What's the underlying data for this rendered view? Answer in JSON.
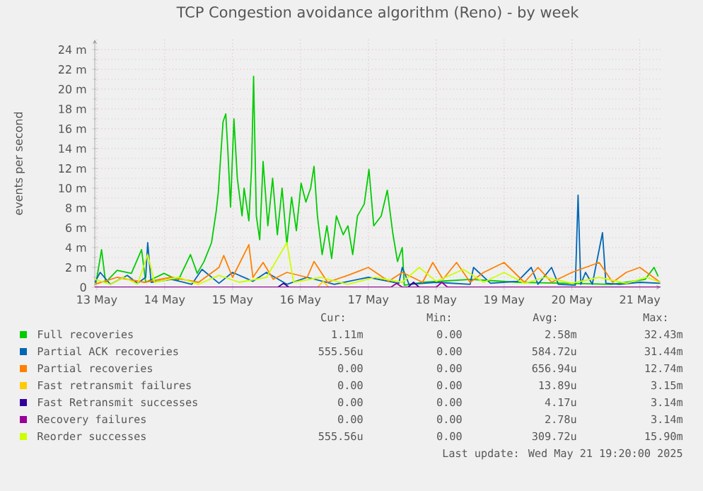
{
  "chart_data": {
    "type": "line",
    "title": "TCP Congestion avoidance algorithm (Reno) - by week",
    "ylabel": "events per second",
    "xlim": [
      "2025-05-13T11:17",
      "2025-05-21T19:20"
    ],
    "xticks": [
      {
        "value": "2025-05-13T12:00",
        "label": "13 May"
      },
      {
        "value": "2025-05-14T12:00",
        "label": "14 May"
      },
      {
        "value": "2025-05-15T12:00",
        "label": "15 May"
      },
      {
        "value": "2025-05-16T12:00",
        "label": "16 May"
      },
      {
        "value": "2025-05-17T12:00",
        "label": "17 May"
      },
      {
        "value": "2025-05-18T12:00",
        "label": "18 May"
      },
      {
        "value": "2025-05-19T12:00",
        "label": "19 May"
      },
      {
        "value": "2025-05-20T12:00",
        "label": "20 May"
      },
      {
        "value": "2025-05-21T12:00",
        "label": "21 May"
      }
    ],
    "ylim": [
      0,
      25
    ],
    "yticks": [
      0,
      {
        "value": 2,
        "label": "2 m"
      },
      {
        "value": 4,
        "label": "4 m"
      },
      {
        "value": 6,
        "label": "6 m"
      },
      {
        "value": 8,
        "label": "8 m"
      },
      {
        "value": 10,
        "label": "10 m"
      },
      {
        "value": 12,
        "label": "12 m"
      },
      {
        "value": 14,
        "label": "14 m"
      },
      {
        "value": 16,
        "label": "16 m"
      },
      {
        "value": 18,
        "label": "18 m"
      },
      {
        "value": 20,
        "label": "20 m"
      },
      {
        "value": 22,
        "label": "22 m"
      },
      {
        "value": 24,
        "label": "24 m"
      }
    ],
    "grid": true,
    "legend": "bottom",
    "marker": "none",
    "line_style": "solid",
    "series": [
      {
        "name": "Full recoveries",
        "color": "#00cc00",
        "x": [
          "2025-05-13T11:17",
          "2025-05-13T11:46",
          "2025-05-13T13:41",
          "2025-05-13T15:07",
          "2025-05-13T19:12",
          "2025-05-14T00:14",
          "2025-05-14T03:50",
          "2025-05-14T05:17",
          "2025-05-14T11:46",
          "2025-05-14T16:48",
          "2025-05-14T21:07",
          "2025-05-14T23:31",
          "2025-05-15T01:55",
          "2025-05-15T04:34",
          "2025-05-15T06:14",
          "2025-05-15T06:58",
          "2025-05-15T08:38",
          "2025-05-15T09:36",
          "2025-05-15T10:19",
          "2025-05-15T11:17",
          "2025-05-15T12:29",
          "2025-05-15T13:41",
          "2025-05-15T15:22",
          "2025-05-15T16:05",
          "2025-05-15T17:46",
          "2025-05-15T18:43",
          "2025-05-15T19:26",
          "2025-05-15T20:24",
          "2025-05-15T21:36",
          "2025-05-15T22:48",
          "2025-05-16T00:29",
          "2025-05-16T02:10",
          "2025-05-16T03:50",
          "2025-05-16T05:31",
          "2025-05-16T07:12",
          "2025-05-16T08:53",
          "2025-05-16T10:34",
          "2025-05-16T12:14",
          "2025-05-16T13:55",
          "2025-05-16T15:36",
          "2025-05-16T16:48",
          "2025-05-16T18:00",
          "2025-05-16T19:41",
          "2025-05-16T21:22",
          "2025-05-16T23:02",
          "2025-05-17T00:43",
          "2025-05-17T03:07",
          "2025-05-17T04:48",
          "2025-05-17T06:29",
          "2025-05-17T08:10",
          "2025-05-17T10:34",
          "2025-05-17T12:14",
          "2025-05-17T13:55",
          "2025-05-17T16:34",
          "2025-05-17T18:43",
          "2025-05-17T20:38",
          "2025-05-17T22:19",
          "2025-05-18T00:00",
          "2025-05-18T00:43",
          "2025-05-18T07:26",
          "2025-05-19T00:14",
          "2025-05-19T16:48",
          "2025-05-20T09:36",
          "2025-05-21T02:10",
          "2025-05-21T13:55",
          "2025-05-21T17:02",
          "2025-05-21T18:29"
        ],
        "values": [
          0.5,
          0.5,
          3.8,
          0.5,
          1.7,
          1.4,
          3.8,
          0.5,
          1.4,
          0.7,
          3.3,
          1.4,
          2.6,
          4.5,
          7.7,
          9.6,
          16.7,
          17.5,
          13.9,
          8.1,
          17.0,
          11.0,
          7.2,
          10.0,
          6.7,
          12.0,
          21.3,
          7.2,
          4.8,
          12.7,
          6.2,
          11.0,
          5.3,
          10.0,
          4.3,
          9.1,
          5.7,
          10.5,
          8.6,
          10.0,
          12.2,
          7.2,
          3.3,
          6.2,
          2.9,
          7.2,
          5.3,
          6.2,
          3.3,
          7.2,
          8.4,
          11.9,
          6.2,
          7.2,
          9.8,
          5.5,
          2.6,
          4.0,
          0.2,
          0.5,
          0.8,
          0.5,
          0.4,
          0.3,
          0.8,
          2.0,
          1.1
        ]
      },
      {
        "name": "Partial ACK recoveries",
        "color": "#0066b3",
        "x": [
          "2025-05-13T11:17",
          "2025-05-13T13:12",
          "2025-05-13T16:48",
          "2025-05-13T22:48",
          "2025-05-14T02:24",
          "2025-05-14T05:17",
          "2025-05-14T06:00",
          "2025-05-14T07:12",
          "2025-05-14T14:24",
          "2025-05-14T21:36",
          "2025-05-15T01:12",
          "2025-05-15T07:12",
          "2025-05-15T12:00",
          "2025-05-15T19:12",
          "2025-05-16T00:00",
          "2025-05-16T07:12",
          "2025-05-16T14:24",
          "2025-05-17T00:00",
          "2025-05-17T12:00",
          "2025-05-17T22:48",
          "2025-05-18T00:00",
          "2025-05-18T02:24",
          "2025-05-18T12:00",
          "2025-05-19T00:00",
          "2025-05-19T01:12",
          "2025-05-19T07:12",
          "2025-05-19T16:48",
          "2025-05-19T21:36",
          "2025-05-20T00:00",
          "2025-05-20T04:48",
          "2025-05-20T07:12",
          "2025-05-20T13:12",
          "2025-05-20T14:10",
          "2025-05-20T15:07",
          "2025-05-20T16:48",
          "2025-05-20T19:12",
          "2025-05-20T22:48",
          "2025-05-21T00:00",
          "2025-05-21T04:48",
          "2025-05-21T12:00",
          "2025-05-21T19:12"
        ],
        "values": [
          0.5,
          1.5,
          0.3,
          1.2,
          0.4,
          1.0,
          4.5,
          0.5,
          0.8,
          0.3,
          1.8,
          0.4,
          1.5,
          0.6,
          1.5,
          0.3,
          1.0,
          0.3,
          1.0,
          0.4,
          2.0,
          0.3,
          0.5,
          0.3,
          2.0,
          0.4,
          0.6,
          2.0,
          0.3,
          2.0,
          0.3,
          0.2,
          9.3,
          0.3,
          1.5,
          0.3,
          5.5,
          0.4,
          0.3,
          0.5,
          0.4
        ]
      },
      {
        "name": "Partial recoveries",
        "color": "#ff8000",
        "x": [
          "2025-05-13T11:17",
          "2025-05-13T19:12",
          "2025-05-14T04:48",
          "2025-05-14T14:24",
          "2025-05-15T00:00",
          "2025-05-15T07:12",
          "2025-05-15T08:53",
          "2025-05-15T12:00",
          "2025-05-15T17:46",
          "2025-05-15T19:12",
          "2025-05-15T22:48",
          "2025-05-16T02:24",
          "2025-05-16T07:12",
          "2025-05-16T14:24",
          "2025-05-16T16:48",
          "2025-05-16T21:36",
          "2025-05-17T04:48",
          "2025-05-17T12:00",
          "2025-05-17T19:12",
          "2025-05-18T00:00",
          "2025-05-18T07:12",
          "2025-05-18T10:48",
          "2025-05-18T14:24",
          "2025-05-18T19:12",
          "2025-05-19T00:00",
          "2025-05-19T04:48",
          "2025-05-19T12:00",
          "2025-05-19T19:12",
          "2025-05-20T00:00",
          "2025-05-20T04:48",
          "2025-05-20T12:00",
          "2025-05-20T21:36",
          "2025-05-21T02:24",
          "2025-05-21T07:12",
          "2025-05-21T12:00",
          "2025-05-21T19:12"
        ],
        "values": [
          0.3,
          1.0,
          0.5,
          1.0,
          0.5,
          2.0,
          3.2,
          1.0,
          4.3,
          1.0,
          2.5,
          0.8,
          1.5,
          1.0,
          2.6,
          0.5,
          1.2,
          2.0,
          0.6,
          1.5,
          0.5,
          2.5,
          0.8,
          2.5,
          0.5,
          1.5,
          2.5,
          0.5,
          2.0,
          0.5,
          1.5,
          2.5,
          0.5,
          1.5,
          2.0,
          0.5
        ]
      },
      {
        "name": "Fast retransmit failures",
        "color": "#ffcc00",
        "x": [
          "2025-05-16T18:00",
          "2025-05-16T20:00",
          "2025-05-16T22:00"
        ],
        "values": [
          0,
          0.6,
          0
        ]
      },
      {
        "name": "Fast Retransmit successes",
        "color": "#330099",
        "x": [
          "2025-05-16T04:00",
          "2025-05-16T06:00",
          "2025-05-16T08:00",
          "2025-05-17T12:00",
          "2025-05-18T02:00",
          "2025-05-18T04:00",
          "2025-05-18T06:00"
        ],
        "values": [
          0,
          0.4,
          0,
          null,
          0,
          0.5,
          0
        ]
      },
      {
        "name": "Recovery failures",
        "color": "#990099",
        "x": [
          "2025-05-13T11:17",
          "2025-05-17T20:00",
          "2025-05-17T22:00",
          "2025-05-18T00:00",
          "2025-05-18T12:00",
          "2025-05-18T14:00",
          "2025-05-18T16:00",
          "2025-05-21T19:20"
        ],
        "values": [
          0,
          0,
          0.4,
          0,
          0,
          0.5,
          0,
          0
        ]
      },
      {
        "name": "Reorder successes",
        "color": "#ccff00",
        "x": [
          "2025-05-13T11:17",
          "2025-05-13T16:48",
          "2025-05-13T21:36",
          "2025-05-14T02:24",
          "2025-05-14T06:00",
          "2025-05-14T08:24",
          "2025-05-14T16:48",
          "2025-05-15T00:00",
          "2025-05-15T07:12",
          "2025-05-15T14:24",
          "2025-05-16T00:00",
          "2025-05-16T07:12",
          "2025-05-16T09:36",
          "2025-05-16T19:12",
          "2025-05-17T04:48",
          "2025-05-17T14:24",
          "2025-05-18T00:00",
          "2025-05-18T06:00",
          "2025-05-18T12:00",
          "2025-05-18T21:36",
          "2025-05-19T04:48",
          "2025-05-19T12:00",
          "2025-05-19T19:12",
          "2025-05-20T02:24",
          "2025-05-20T12:00",
          "2025-05-20T21:36",
          "2025-05-21T07:12",
          "2025-05-21T14:24",
          "2025-05-21T19:12"
        ],
        "values": [
          0.8,
          0.3,
          1.0,
          0.3,
          3.3,
          0.5,
          1.0,
          0.3,
          1.2,
          0.5,
          1.0,
          4.5,
          0.5,
          1.0,
          0.3,
          1.0,
          0.5,
          2.0,
          0.6,
          1.8,
          0.5,
          1.5,
          0.4,
          1.0,
          0.4,
          1.0,
          0.4,
          1.0,
          0.5
        ]
      }
    ],
    "annotations": [
      "Cur:",
      "Min:",
      "Avg:",
      "Max:",
      "1.11m",
      "0.00",
      "2.58m",
      "32.43m",
      "555.56u",
      "0.00",
      "584.72u",
      "31.44m",
      "0.00",
      "0.00",
      "656.94u",
      "12.74m",
      "0.00",
      "0.00",
      "13.89u",
      "3.15m",
      "0.00",
      "0.00",
      "4.17u",
      "3.14m",
      "0.00",
      "0.00",
      "2.78u",
      "3.14m",
      "555.56u",
      "0.00",
      "309.72u",
      "15.90m",
      "Last update: Wed May 21 19:20:00 2025"
    ]
  }
}
